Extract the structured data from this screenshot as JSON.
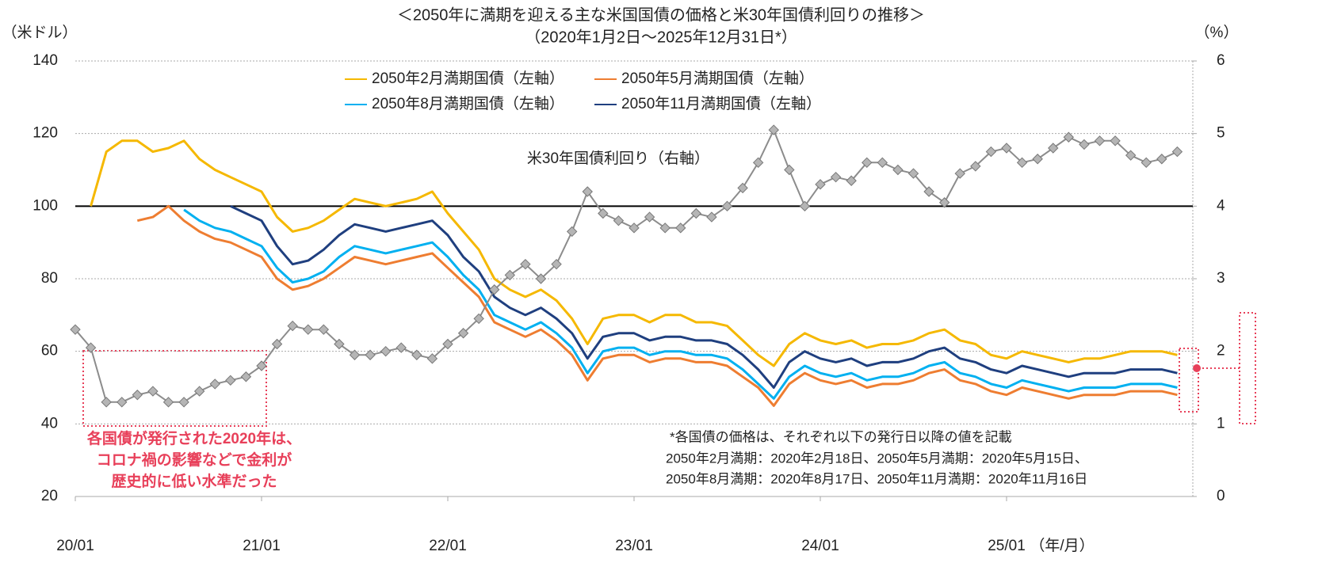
{
  "chart_data": {
    "type": "line",
    "title": "＜2050年に満期を迎える主な米国国債の価格と米30年国債利回りの推移＞",
    "subtitle": "（2020年1月2日～2025年12月31日*）",
    "y_label": "（米ドル）",
    "y2_label": "（%）",
    "x_label": "（年/月）",
    "x": [
      0,
      1,
      2,
      3,
      4,
      5,
      6,
      7,
      8,
      9,
      10,
      11,
      12,
      13,
      14,
      15,
      16,
      17,
      18,
      19,
      20,
      21,
      22,
      23,
      24,
      25,
      26,
      27,
      28,
      29,
      30,
      31,
      32,
      33,
      34,
      35,
      36,
      37,
      38,
      39,
      40,
      41,
      42,
      43,
      44,
      45,
      46,
      47,
      48,
      49,
      50,
      51,
      52,
      53,
      54,
      55,
      56,
      57,
      58,
      59,
      60,
      61,
      62,
      63,
      64,
      65,
      66,
      67,
      68,
      69,
      70,
      71
    ],
    "xlim": [
      0,
      72
    ],
    "xticks": [
      {
        "value": 0,
        "label": "20/01"
      },
      {
        "value": 12,
        "label": "21/01"
      },
      {
        "value": 24,
        "label": "22/01"
      },
      {
        "value": 36,
        "label": "23/01"
      },
      {
        "value": 48,
        "label": "24/01"
      },
      {
        "value": 60,
        "label": "25/01"
      }
    ],
    "ylim": [
      20,
      140
    ],
    "yticks": [
      20,
      40,
      60,
      80,
      100,
      120,
      140
    ],
    "y2lim": [
      0,
      6
    ],
    "y2ticks": [
      0,
      1,
      2,
      3,
      4,
      5,
      6
    ],
    "grid": true,
    "reference_line": 100,
    "series": [
      {
        "name": "2050年2月満期国債（左軸）",
        "color": "#f5b800",
        "values": [
          null,
          100,
          115,
          118,
          118,
          115,
          116,
          118,
          113,
          110,
          108,
          106,
          104,
          97,
          93,
          94,
          96,
          99,
          102,
          101,
          100,
          101,
          102,
          104,
          98,
          93,
          88,
          80,
          77,
          75,
          77,
          74,
          69,
          62,
          69,
          70,
          70,
          68,
          70,
          70,
          68,
          68,
          67,
          63,
          59,
          56,
          62,
          65,
          63,
          62,
          63,
          61,
          62,
          62,
          63,
          65,
          66,
          63,
          62,
          59,
          58,
          60,
          59,
          58,
          57,
          58,
          58,
          59,
          60,
          60,
          60,
          59
        ]
      },
      {
        "name": "2050年5月満期国債（左軸）",
        "color": "#ee7d31",
        "values": [
          null,
          null,
          null,
          null,
          96,
          97,
          100,
          96,
          93,
          91,
          90,
          88,
          86,
          80,
          77,
          78,
          80,
          83,
          86,
          85,
          84,
          85,
          86,
          87,
          83,
          79,
          75,
          68,
          66,
          64,
          66,
          63,
          59,
          52,
          58,
          59,
          59,
          57,
          58,
          58,
          57,
          57,
          56,
          53,
          50,
          45,
          51,
          54,
          52,
          51,
          52,
          50,
          51,
          51,
          52,
          54,
          55,
          52,
          51,
          49,
          48,
          50,
          49,
          48,
          47,
          48,
          48,
          48,
          49,
          49,
          49,
          48
        ]
      },
      {
        "name": "2050年8月満期国債（左軸）",
        "color": "#00b0f0",
        "values": [
          null,
          null,
          null,
          null,
          null,
          null,
          null,
          99,
          96,
          94,
          93,
          91,
          89,
          83,
          79,
          80,
          82,
          86,
          89,
          88,
          87,
          88,
          89,
          90,
          86,
          81,
          77,
          70,
          68,
          66,
          68,
          65,
          61,
          54,
          60,
          61,
          61,
          59,
          60,
          60,
          59,
          59,
          58,
          55,
          51,
          47,
          53,
          56,
          54,
          53,
          54,
          52,
          53,
          53,
          54,
          56,
          57,
          54,
          53,
          51,
          50,
          52,
          51,
          50,
          49,
          50,
          50,
          50,
          51,
          51,
          51,
          50
        ]
      },
      {
        "name": "2050年11月満期国債（左軸）",
        "color": "#1f3f7f",
        "values": [
          null,
          null,
          null,
          null,
          null,
          null,
          null,
          null,
          null,
          null,
          100,
          98,
          96,
          89,
          84,
          85,
          88,
          92,
          95,
          94,
          93,
          94,
          95,
          96,
          92,
          86,
          82,
          75,
          72,
          70,
          72,
          69,
          65,
          58,
          64,
          65,
          65,
          63,
          64,
          64,
          63,
          63,
          62,
          59,
          55,
          50,
          57,
          60,
          58,
          57,
          58,
          56,
          57,
          57,
          58,
          60,
          61,
          58,
          57,
          55,
          54,
          56,
          55,
          54,
          53,
          54,
          54,
          54,
          55,
          55,
          55,
          54
        ]
      },
      {
        "name": "米30年国債利回り（右軸）",
        "color": "#8c8c8c",
        "axis": "y2",
        "values": [
          2.3,
          2.05,
          1.3,
          1.3,
          1.4,
          1.45,
          1.3,
          1.3,
          1.45,
          1.55,
          1.6,
          1.65,
          1.8,
          2.1,
          2.35,
          2.3,
          2.3,
          2.1,
          1.95,
          1.95,
          2.0,
          2.05,
          1.95,
          1.9,
          2.1,
          2.25,
          2.45,
          2.85,
          3.05,
          3.2,
          3.0,
          3.2,
          3.65,
          4.2,
          3.9,
          3.8,
          3.7,
          3.85,
          3.7,
          3.7,
          3.9,
          3.85,
          4.0,
          4.25,
          4.6,
          5.05,
          4.5,
          4.0,
          4.3,
          4.4,
          4.35,
          4.6,
          4.6,
          4.5,
          4.45,
          4.2,
          4.05,
          4.45,
          4.55,
          4.75,
          4.8,
          4.6,
          4.65,
          4.8,
          4.95,
          4.85,
          4.9,
          4.9,
          4.7,
          4.6,
          4.65,
          4.75
        ]
      }
    ],
    "annotations": [
      "各国債が発行された2020年は、",
      "コロナ禍の影響などで金利が",
      "歴史的に低い水準だった"
    ],
    "footnotes": [
      "*各国債の価格は、それぞれ以下の発行日以降の値を記載",
      "2050年2月満期：2020年2月18日、2050年5月満期：2020年5月15日、",
      "2050年8月満期：2020年8月17日、2050年11月満期：2020年11月16日"
    ]
  }
}
